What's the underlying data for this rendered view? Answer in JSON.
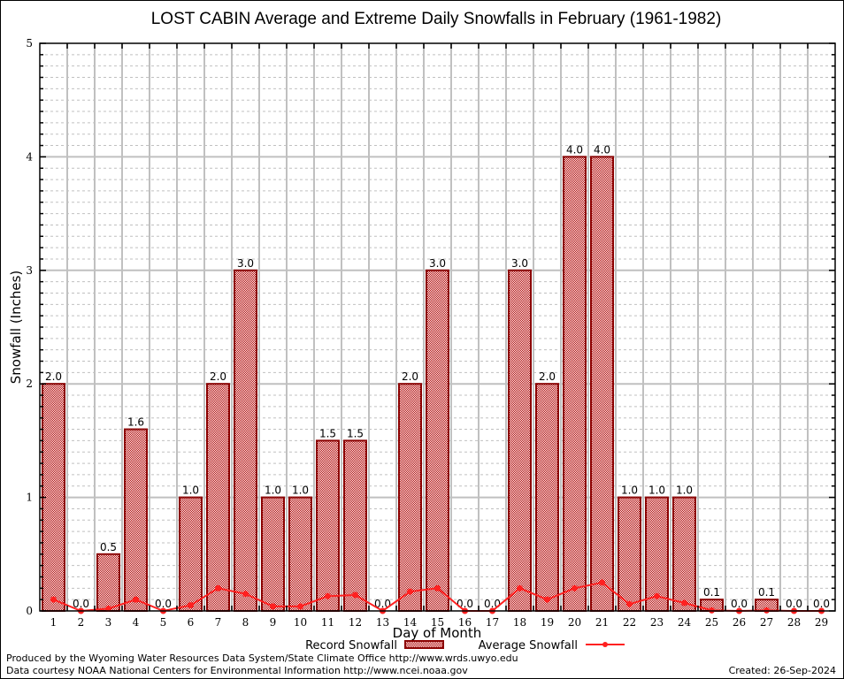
{
  "chart_data": {
    "type": "bar",
    "title": "LOST CABIN Average and Extreme Daily Snowfalls in February (1961-1982)",
    "xlabel": "Day of Month",
    "ylabel": "Snowfall (Inches)",
    "ylim": [
      0,
      5
    ],
    "yticks": [
      "0",
      "1",
      "2",
      "3",
      "4",
      "5"
    ],
    "grid": true,
    "categories": [
      "1",
      "2",
      "3",
      "4",
      "5",
      "6",
      "7",
      "8",
      "9",
      "10",
      "11",
      "12",
      "13",
      "14",
      "15",
      "16",
      "17",
      "18",
      "19",
      "20",
      "21",
      "22",
      "23",
      "24",
      "25",
      "26",
      "27",
      "28",
      "29"
    ],
    "series": [
      {
        "name": "Record Snowfall",
        "type": "bar",
        "color": "#8b0000",
        "fill_color": "#c00000",
        "values": [
          2.0,
          0.0,
          0.5,
          1.6,
          0.0,
          1.0,
          2.0,
          3.0,
          1.0,
          1.0,
          1.5,
          1.5,
          0.0,
          2.0,
          3.0,
          0.0,
          0.0,
          3.0,
          2.0,
          4.0,
          4.0,
          1.0,
          1.0,
          1.0,
          0.1,
          0.0,
          0.1,
          0.0,
          0.0
        ],
        "labels": [
          "2.0",
          "0.0",
          "0.5",
          "1.6",
          "0.0",
          "1.0",
          "2.0",
          "3.0",
          "1.0",
          "1.0",
          "1.5",
          "1.5",
          "0.0",
          "2.0",
          "3.0",
          "0.0",
          "0.0",
          "3.0",
          "2.0",
          "4.0",
          "4.0",
          "1.0",
          "1.0",
          "1.0",
          "0.1",
          "0.0",
          "0.1",
          "0.0",
          "0.0"
        ]
      },
      {
        "name": "Average Snowfall",
        "type": "line",
        "color": "#ff2020",
        "values": [
          0.1,
          0.0,
          0.02,
          0.1,
          0.0,
          0.05,
          0.2,
          0.15,
          0.04,
          0.04,
          0.13,
          0.14,
          0.0,
          0.17,
          0.2,
          0.0,
          0.0,
          0.2,
          0.1,
          0.2,
          0.25,
          0.06,
          0.13,
          0.07,
          0.005,
          0.0,
          0.005,
          0.0,
          0.0
        ]
      }
    ],
    "legend": {
      "placement": "bottom-center",
      "record_label": "Record Snowfall",
      "average_label": "Average Snowfall"
    }
  },
  "footer": {
    "line1": "Produced by the Wyoming Water Resources Data System/State Climate Office http://www.wrds.uwyo.edu",
    "line2": "Data courtesy NOAA National Centers for Environmental Information http://www.ncei.noaa.gov",
    "created": "Created: 26-Sep-2024"
  }
}
